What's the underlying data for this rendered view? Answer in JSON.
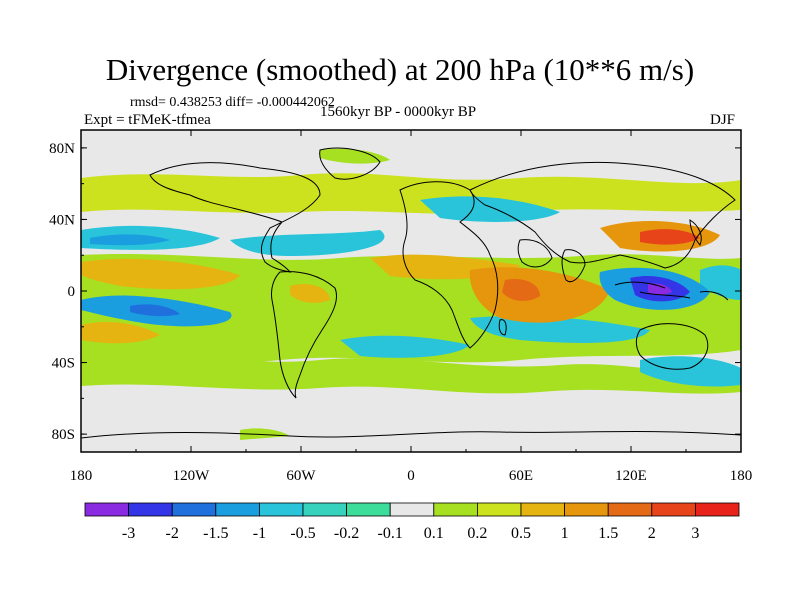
{
  "figure": {
    "title": "Divergence (smoothed) at 200 hPa (10**6 m/s)",
    "stats": "rmsd= 0.438253 diff= -0.000442062",
    "experiment": "Expt = tFMeK-tfmea",
    "period": "1560kyr BP - 0000kyr BP",
    "season": "DJF"
  },
  "axes": {
    "lat_labels": [
      "80N",
      "40N",
      "0",
      "40S",
      "80S"
    ],
    "lon_labels": [
      "180",
      "120W",
      "60W",
      "0",
      "60E",
      "120E",
      "180"
    ],
    "lat_values": [
      80,
      40,
      0,
      -40,
      -80
    ],
    "lon_values": [
      -180,
      -120,
      -60,
      0,
      60,
      120,
      180
    ]
  },
  "colorbar": {
    "labels": [
      "-3",
      "-2",
      "-1.5",
      "-1",
      "-0.5",
      "-0.2",
      "-0.1",
      "0.1",
      "0.2",
      "0.5",
      "1",
      "1.5",
      "2",
      "3"
    ],
    "colors": [
      "#8a2be2",
      "#3535e8",
      "#1f6fdc",
      "#1a9ee0",
      "#29c4da",
      "#37d2bd",
      "#3cdc9a",
      "#e8e8e8",
      "#a6e020",
      "#cde21e",
      "#e6b410",
      "#e6960c",
      "#e56a16",
      "#e8441a",
      "#e8241a"
    ]
  },
  "regions": [
    {
      "name": "orange-band-north-pacific",
      "color": "#e6960c"
    },
    {
      "name": "blue-band-south-pacific",
      "color": "#1a9ee0"
    },
    {
      "name": "orange-east-africa",
      "color": "#e56a16"
    },
    {
      "name": "purple-maritime-continent",
      "color": "#3535e8"
    },
    {
      "name": "orange-japan",
      "color": "#e8441a"
    }
  ]
}
